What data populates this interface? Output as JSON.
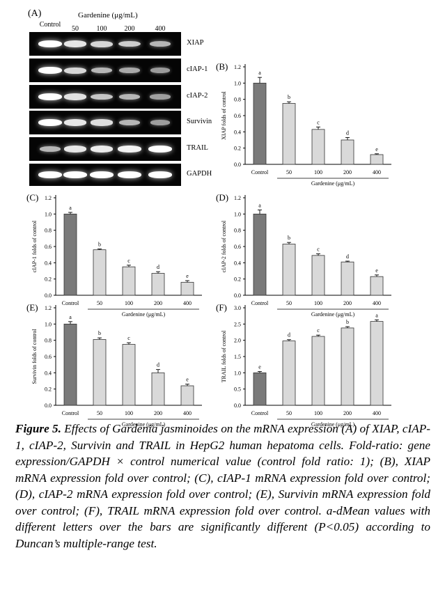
{
  "gel": {
    "panel_label": "(A)",
    "header": "Gardenine (μg/mL)",
    "lanes": [
      "Control",
      "50",
      "100",
      "200",
      "400"
    ],
    "genes": [
      {
        "name": "XIAP",
        "intensity": [
          1.0,
          0.85,
          0.75,
          0.7,
          0.55
        ]
      },
      {
        "name": "cIAP-1",
        "intensity": [
          1.0,
          0.75,
          0.55,
          0.48,
          0.38
        ]
      },
      {
        "name": "cIAP-2",
        "intensity": [
          1.0,
          0.82,
          0.65,
          0.55,
          0.42
        ]
      },
      {
        "name": "Survivin",
        "intensity": [
          1.0,
          0.85,
          0.8,
          0.55,
          0.4
        ]
      },
      {
        "name": "TRAIL",
        "intensity": [
          0.55,
          0.85,
          0.88,
          0.92,
          1.0
        ]
      },
      {
        "name": "GAPDH",
        "intensity": [
          1.0,
          1.0,
          1.0,
          1.0,
          1.0
        ]
      }
    ]
  },
  "chart_data": [
    {
      "panel": "(B)",
      "type": "bar",
      "ylabel": "XIAP folds of control",
      "categories": [
        "Control",
        "50",
        "100",
        "200",
        "400"
      ],
      "values": [
        1.0,
        0.75,
        0.43,
        0.3,
        0.12
      ],
      "errors": [
        0.07,
        0.02,
        0.03,
        0.03,
        0.01
      ],
      "letters": [
        "a",
        "b",
        "c",
        "d",
        "e"
      ],
      "ylim": [
        0,
        1.2
      ],
      "yticks": [
        "0.0",
        "0.2",
        "0.4",
        "0.6",
        "0.8",
        "1.0",
        "1.2"
      ],
      "xgroup_label": "Gardenine (μg/mL)"
    },
    {
      "panel": "(C)",
      "type": "bar",
      "ylabel": "cIAP-1 folds of control",
      "categories": [
        "Control",
        "50",
        "100",
        "200",
        "400"
      ],
      "values": [
        1.0,
        0.56,
        0.35,
        0.27,
        0.16
      ],
      "errors": [
        0.02,
        0.01,
        0.02,
        0.02,
        0.02
      ],
      "letters": [
        "a",
        "b",
        "c",
        "d",
        "e"
      ],
      "ylim": [
        0,
        1.2
      ],
      "yticks": [
        "0.0",
        "0.2",
        "0.4",
        "0.6",
        "0.8",
        "1.0",
        "1.2"
      ],
      "xgroup_label": "Gardenine (μg/mL)"
    },
    {
      "panel": "(D)",
      "type": "bar",
      "ylabel": "cIAP-2 folds of control",
      "categories": [
        "Control",
        "50",
        "100",
        "200",
        "400"
      ],
      "values": [
        1.0,
        0.63,
        0.49,
        0.41,
        0.23
      ],
      "errors": [
        0.05,
        0.02,
        0.02,
        0.01,
        0.02
      ],
      "letters": [
        "a",
        "b",
        "c",
        "d",
        "e"
      ],
      "ylim": [
        0,
        1.2
      ],
      "yticks": [
        "0.0",
        "0.2",
        "0.4",
        "0.6",
        "0.8",
        "1.0",
        "1.2"
      ],
      "xgroup_label": "Gardenine (μg/mL)"
    },
    {
      "panel": "(E)",
      "type": "bar",
      "ylabel": "Survivin folds of control",
      "categories": [
        "Control",
        "50",
        "100",
        "200",
        "400"
      ],
      "values": [
        1.0,
        0.81,
        0.75,
        0.4,
        0.24
      ],
      "errors": [
        0.03,
        0.02,
        0.02,
        0.04,
        0.02
      ],
      "letters": [
        "a",
        "b",
        "c",
        "d",
        "e"
      ],
      "ylim": [
        0,
        1.2
      ],
      "yticks": [
        "0.0",
        "0.2",
        "0.4",
        "0.6",
        "0.8",
        "1.0",
        "1.2"
      ],
      "xgroup_label": "Gardenine (μg/mL)"
    },
    {
      "panel": "(F)",
      "type": "bar",
      "ylabel": "TRAIL folds of control",
      "categories": [
        "Control",
        "50",
        "100",
        "200",
        "400"
      ],
      "values": [
        1.0,
        1.98,
        2.12,
        2.38,
        2.58
      ],
      "errors": [
        0.04,
        0.04,
        0.04,
        0.04,
        0.05
      ],
      "letters": [
        "e",
        "d",
        "c",
        "b",
        "a"
      ],
      "ylim": [
        0,
        3.0
      ],
      "yticks": [
        "0.0",
        "0.5",
        "1.0",
        "1.5",
        "2.0",
        "2.5",
        "3.0"
      ],
      "xgroup_label": "Gardenine (μg/mL)"
    }
  ],
  "colors": {
    "control_bar": "#7a7a7a",
    "treated_bar": "#d9d9d9",
    "gel_bg": "#050505",
    "band": "#ffffff"
  },
  "caption": {
    "label": "Figure 5.",
    "text": " Effects of Gardenia jasminoides on the mRNA expression (A) of XIAP, cIAP-1, cIAP-2, Survivin and TRAIL in HepG2 human hepatoma cells. Fold-ratio: gene expression/GAPDH × control numerical value (control fold ratio: 1); (B), XIAP mRNA expression fold over control; (C), cIAP-1 mRNA expression fold over control; (D), cIAP-2 mRNA expression fold over control; (E), Survivin mRNA expression fold over control; (F), TRAIL mRNA expression fold over control. a-dMean values with different letters over the bars are significantly different (P<0.05) according to Duncan’s multiple-range test."
  }
}
